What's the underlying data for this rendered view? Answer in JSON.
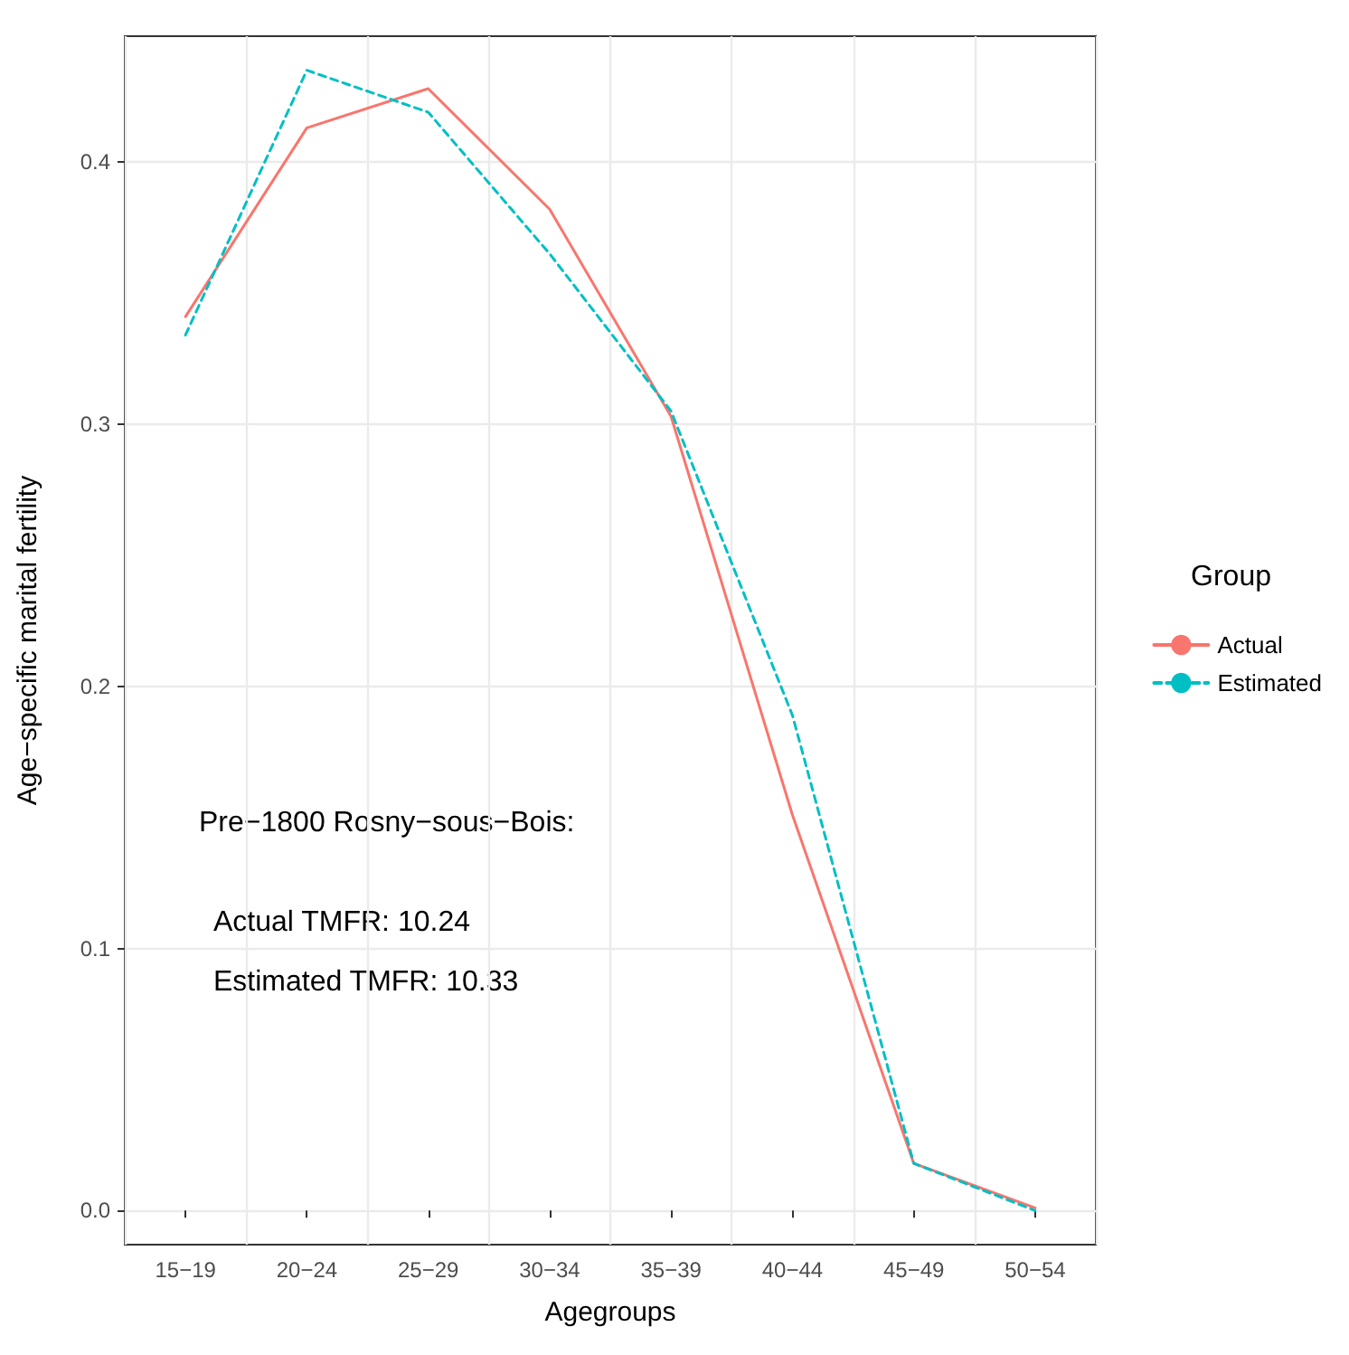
{
  "chart_data": {
    "type": "line",
    "xlabel": "Agegroups",
    "ylabel": "Age−specific marital fertility",
    "legend_title": "Group",
    "categories": [
      "15−19",
      "20−24",
      "25−29",
      "30−34",
      "35−39",
      "40−44",
      "45−49",
      "50−54"
    ],
    "series": [
      {
        "name": "Actual",
        "color": "#f8766d",
        "line_style": "solid",
        "values": [
          0.341,
          0.413,
          0.428,
          0.382,
          0.303,
          0.151,
          0.018,
          0.001
        ]
      },
      {
        "name": "Estimated",
        "color": "#00bfc4",
        "line_style": "dashed",
        "values": [
          0.334,
          0.435,
          0.419,
          0.365,
          0.305,
          0.189,
          0.018,
          0.0
        ]
      }
    ],
    "ylim": [
      -0.013,
      0.448
    ],
    "yticks": [
      {
        "value": 0,
        "label": "0.0"
      },
      {
        "value": 0.1,
        "label": "0.1"
      },
      {
        "value": 0.2,
        "label": "0.2"
      },
      {
        "value": 0.3,
        "label": "0.3"
      },
      {
        "value": 0.4,
        "label": "0.4"
      }
    ],
    "annotations": [
      "Pre−1800 Rosny−sous−Bois:",
      "Actual TMFR: 10.24",
      "Estimated TMFR: 10.33"
    ],
    "grid": true,
    "legend": "right",
    "marker": "none"
  }
}
